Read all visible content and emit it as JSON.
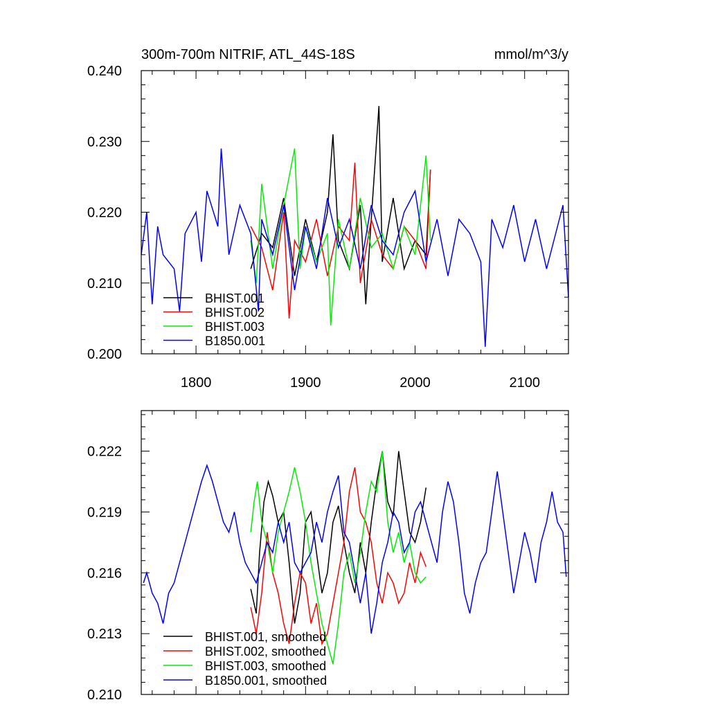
{
  "chart_data": [
    {
      "type": "line",
      "title_left": "300m-700m NITRIF, ATL_44S-18S",
      "title_right": "mmol/m^3/y",
      "xlim": [
        1750,
        2140
      ],
      "ylim": [
        0.2,
        0.24
      ],
      "x_ticks": [
        1800,
        1900,
        2000,
        2100
      ],
      "x_tick_labels": [
        "1800",
        "1900",
        "2000",
        "2100"
      ],
      "y_ticks": [
        0.2,
        0.21,
        0.22,
        0.23,
        0.24
      ],
      "y_tick_labels": [
        "0.200",
        "0.210",
        "0.220",
        "0.230",
        "0.240"
      ],
      "legend_position": "bottom-left",
      "series": [
        {
          "name": "BHIST.001",
          "color": "#000000",
          "x": [
            1850,
            1860,
            1870,
            1880,
            1890,
            1900,
            1910,
            1920,
            1925,
            1930,
            1940,
            1950,
            1955,
            1960,
            1967,
            1970,
            1980,
            1990,
            2000,
            2010,
            2014
          ],
          "y": [
            0.212,
            0.217,
            0.215,
            0.222,
            0.211,
            0.219,
            0.213,
            0.22,
            0.231,
            0.216,
            0.212,
            0.221,
            0.207,
            0.219,
            0.235,
            0.213,
            0.222,
            0.212,
            0.216,
            0.214,
            0.226
          ]
        },
        {
          "name": "BHIST.002",
          "color": "#ff0000",
          "x": [
            1850,
            1860,
            1870,
            1880,
            1885,
            1890,
            1900,
            1910,
            1920,
            1930,
            1940,
            1945,
            1950,
            1960,
            1970,
            1980,
            1990,
            2000,
            2010,
            2014
          ],
          "y": [
            0.218,
            0.215,
            0.209,
            0.22,
            0.205,
            0.216,
            0.213,
            0.219,
            0.211,
            0.218,
            0.216,
            0.227,
            0.21,
            0.219,
            0.214,
            0.212,
            0.218,
            0.216,
            0.212,
            0.226
          ]
        },
        {
          "name": "BHIST.003",
          "color": "#00ee00",
          "x": [
            1850,
            1855,
            1860,
            1870,
            1880,
            1890,
            1895,
            1900,
            1910,
            1920,
            1923,
            1930,
            1940,
            1950,
            1960,
            1970,
            1980,
            1990,
            2000,
            2010,
            2014
          ],
          "y": [
            0.216,
            0.21,
            0.224,
            0.212,
            0.221,
            0.229,
            0.212,
            0.218,
            0.213,
            0.217,
            0.204,
            0.219,
            0.212,
            0.222,
            0.215,
            0.217,
            0.212,
            0.218,
            0.214,
            0.228,
            0.216
          ]
        },
        {
          "name": "B1850.001",
          "color": "#0000ff",
          "x": [
            1750,
            1755,
            1760,
            1765,
            1770,
            1780,
            1785,
            1790,
            1800,
            1805,
            1810,
            1820,
            1823,
            1830,
            1840,
            1850,
            1857,
            1860,
            1870,
            1880,
            1890,
            1900,
            1910,
            1920,
            1930,
            1940,
            1950,
            1960,
            1970,
            1980,
            1990,
            2000,
            2010,
            2020,
            2030,
            2040,
            2050,
            2060,
            2064,
            2070,
            2080,
            2090,
            2100,
            2110,
            2120,
            2130,
            2135,
            2140
          ],
          "y": [
            0.214,
            0.22,
            0.207,
            0.218,
            0.214,
            0.212,
            0.206,
            0.217,
            0.22,
            0.213,
            0.223,
            0.218,
            0.229,
            0.214,
            0.221,
            0.217,
            0.206,
            0.219,
            0.214,
            0.221,
            0.209,
            0.218,
            0.212,
            0.222,
            0.215,
            0.219,
            0.212,
            0.221,
            0.216,
            0.214,
            0.22,
            0.223,
            0.213,
            0.219,
            0.211,
            0.219,
            0.217,
            0.213,
            0.201,
            0.219,
            0.215,
            0.221,
            0.213,
            0.219,
            0.212,
            0.218,
            0.221,
            0.208
          ]
        }
      ]
    },
    {
      "type": "line",
      "title_left": "",
      "title_right": "",
      "xlim": [
        1750,
        2140
      ],
      "ylim": [
        0.21,
        0.224
      ],
      "x_ticks": [
        1800,
        1900,
        2000,
        2100
      ],
      "x_tick_labels": [
        "",
        "",
        "",
        ""
      ],
      "y_ticks": [
        0.21,
        0.213,
        0.216,
        0.219,
        0.222
      ],
      "y_tick_labels": [
        "0.210",
        "0.213",
        "0.216",
        "0.219",
        "0.222"
      ],
      "legend_position": "bottom-left",
      "series": [
        {
          "name": "BHIST.001, smoothed",
          "color": "#000000",
          "x": [
            1850,
            1855,
            1858,
            1862,
            1866,
            1870,
            1875,
            1880,
            1885,
            1890,
            1895,
            1900,
            1905,
            1910,
            1915,
            1920,
            1925,
            1930,
            1935,
            1940,
            1945,
            1950,
            1955,
            1960,
            1965,
            1970,
            1975,
            1980,
            1985,
            1990,
            1995,
            2000,
            2005,
            2010
          ],
          "y": [
            0.2152,
            0.214,
            0.217,
            0.2195,
            0.2205,
            0.2198,
            0.2185,
            0.219,
            0.2165,
            0.2135,
            0.215,
            0.2185,
            0.219,
            0.217,
            0.215,
            0.216,
            0.2185,
            0.2193,
            0.2175,
            0.216,
            0.215,
            0.2175,
            0.216,
            0.2185,
            0.2205,
            0.222,
            0.2195,
            0.2188,
            0.222,
            0.22,
            0.218,
            0.2175,
            0.2185,
            0.2202
          ]
        },
        {
          "name": "BHIST.002, smoothed",
          "color": "#ff0000",
          "x": [
            1850,
            1855,
            1860,
            1865,
            1870,
            1875,
            1880,
            1885,
            1890,
            1895,
            1900,
            1905,
            1910,
            1915,
            1920,
            1925,
            1930,
            1935,
            1940,
            1945,
            1950,
            1955,
            1960,
            1965,
            1970,
            1975,
            1980,
            1985,
            1990,
            1995,
            2000,
            2005,
            2010
          ],
          "y": [
            0.2143,
            0.213,
            0.215,
            0.218,
            0.216,
            0.215,
            0.2135,
            0.2125,
            0.2145,
            0.216,
            0.2155,
            0.2135,
            0.2145,
            0.2125,
            0.213,
            0.2145,
            0.216,
            0.2175,
            0.22,
            0.2212,
            0.219,
            0.2185,
            0.2175,
            0.2155,
            0.2145,
            0.216,
            0.2155,
            0.2145,
            0.215,
            0.2165,
            0.2155,
            0.217,
            0.2163
          ]
        },
        {
          "name": "BHIST.003, smoothed",
          "color": "#00ee00",
          "x": [
            1850,
            1853,
            1856,
            1860,
            1865,
            1870,
            1875,
            1880,
            1885,
            1890,
            1895,
            1900,
            1905,
            1910,
            1915,
            1920,
            1925,
            1930,
            1935,
            1940,
            1945,
            1950,
            1955,
            1960,
            1965,
            1970,
            1975,
            1980,
            1985,
            1990,
            1995,
            2000,
            2005,
            2010
          ],
          "y": [
            0.218,
            0.2195,
            0.2205,
            0.2185,
            0.2175,
            0.216,
            0.218,
            0.219,
            0.22,
            0.2212,
            0.22,
            0.2185,
            0.2165,
            0.215,
            0.2135,
            0.2125,
            0.2115,
            0.2135,
            0.216,
            0.217,
            0.2155,
            0.217,
            0.219,
            0.2205,
            0.22,
            0.222,
            0.2185,
            0.217,
            0.218,
            0.2165,
            0.2175,
            0.216,
            0.2155,
            0.2158
          ]
        },
        {
          "name": "B1850.001, smoothed",
          "color": "#0000ff",
          "x": [
            1752,
            1755,
            1760,
            1765,
            1770,
            1775,
            1780,
            1785,
            1790,
            1795,
            1800,
            1805,
            1810,
            1815,
            1820,
            1825,
            1830,
            1835,
            1840,
            1845,
            1850,
            1855,
            1860,
            1865,
            1870,
            1875,
            1880,
            1885,
            1890,
            1895,
            1900,
            1905,
            1910,
            1915,
            1920,
            1925,
            1930,
            1935,
            1940,
            1945,
            1950,
            1955,
            1960,
            1965,
            1970,
            1975,
            1980,
            1985,
            1990,
            1995,
            2000,
            2005,
            2010,
            2015,
            2020,
            2025,
            2030,
            2035,
            2040,
            2045,
            2050,
            2055,
            2060,
            2065,
            2070,
            2075,
            2080,
            2085,
            2090,
            2095,
            2100,
            2105,
            2110,
            2115,
            2120,
            2125,
            2130,
            2135,
            2138
          ],
          "y": [
            0.2155,
            0.216,
            0.215,
            0.2145,
            0.2135,
            0.215,
            0.2155,
            0.2165,
            0.2175,
            0.2185,
            0.2195,
            0.2205,
            0.2213,
            0.2205,
            0.2195,
            0.2185,
            0.218,
            0.219,
            0.2175,
            0.2165,
            0.216,
            0.2155,
            0.2165,
            0.2175,
            0.217,
            0.2185,
            0.2175,
            0.2185,
            0.2165,
            0.216,
            0.2165,
            0.217,
            0.2185,
            0.2175,
            0.219,
            0.22,
            0.2208,
            0.218,
            0.2175,
            0.216,
            0.2145,
            0.216,
            0.213,
            0.2145,
            0.2165,
            0.2175,
            0.219,
            0.2185,
            0.217,
            0.2175,
            0.219,
            0.2195,
            0.2185,
            0.2175,
            0.2165,
            0.219,
            0.2205,
            0.2195,
            0.2175,
            0.215,
            0.214,
            0.2155,
            0.2165,
            0.217,
            0.219,
            0.221,
            0.219,
            0.217,
            0.215,
            0.2165,
            0.218,
            0.217,
            0.2155,
            0.2175,
            0.2185,
            0.22,
            0.2185,
            0.218,
            0.2158
          ]
        }
      ]
    }
  ]
}
